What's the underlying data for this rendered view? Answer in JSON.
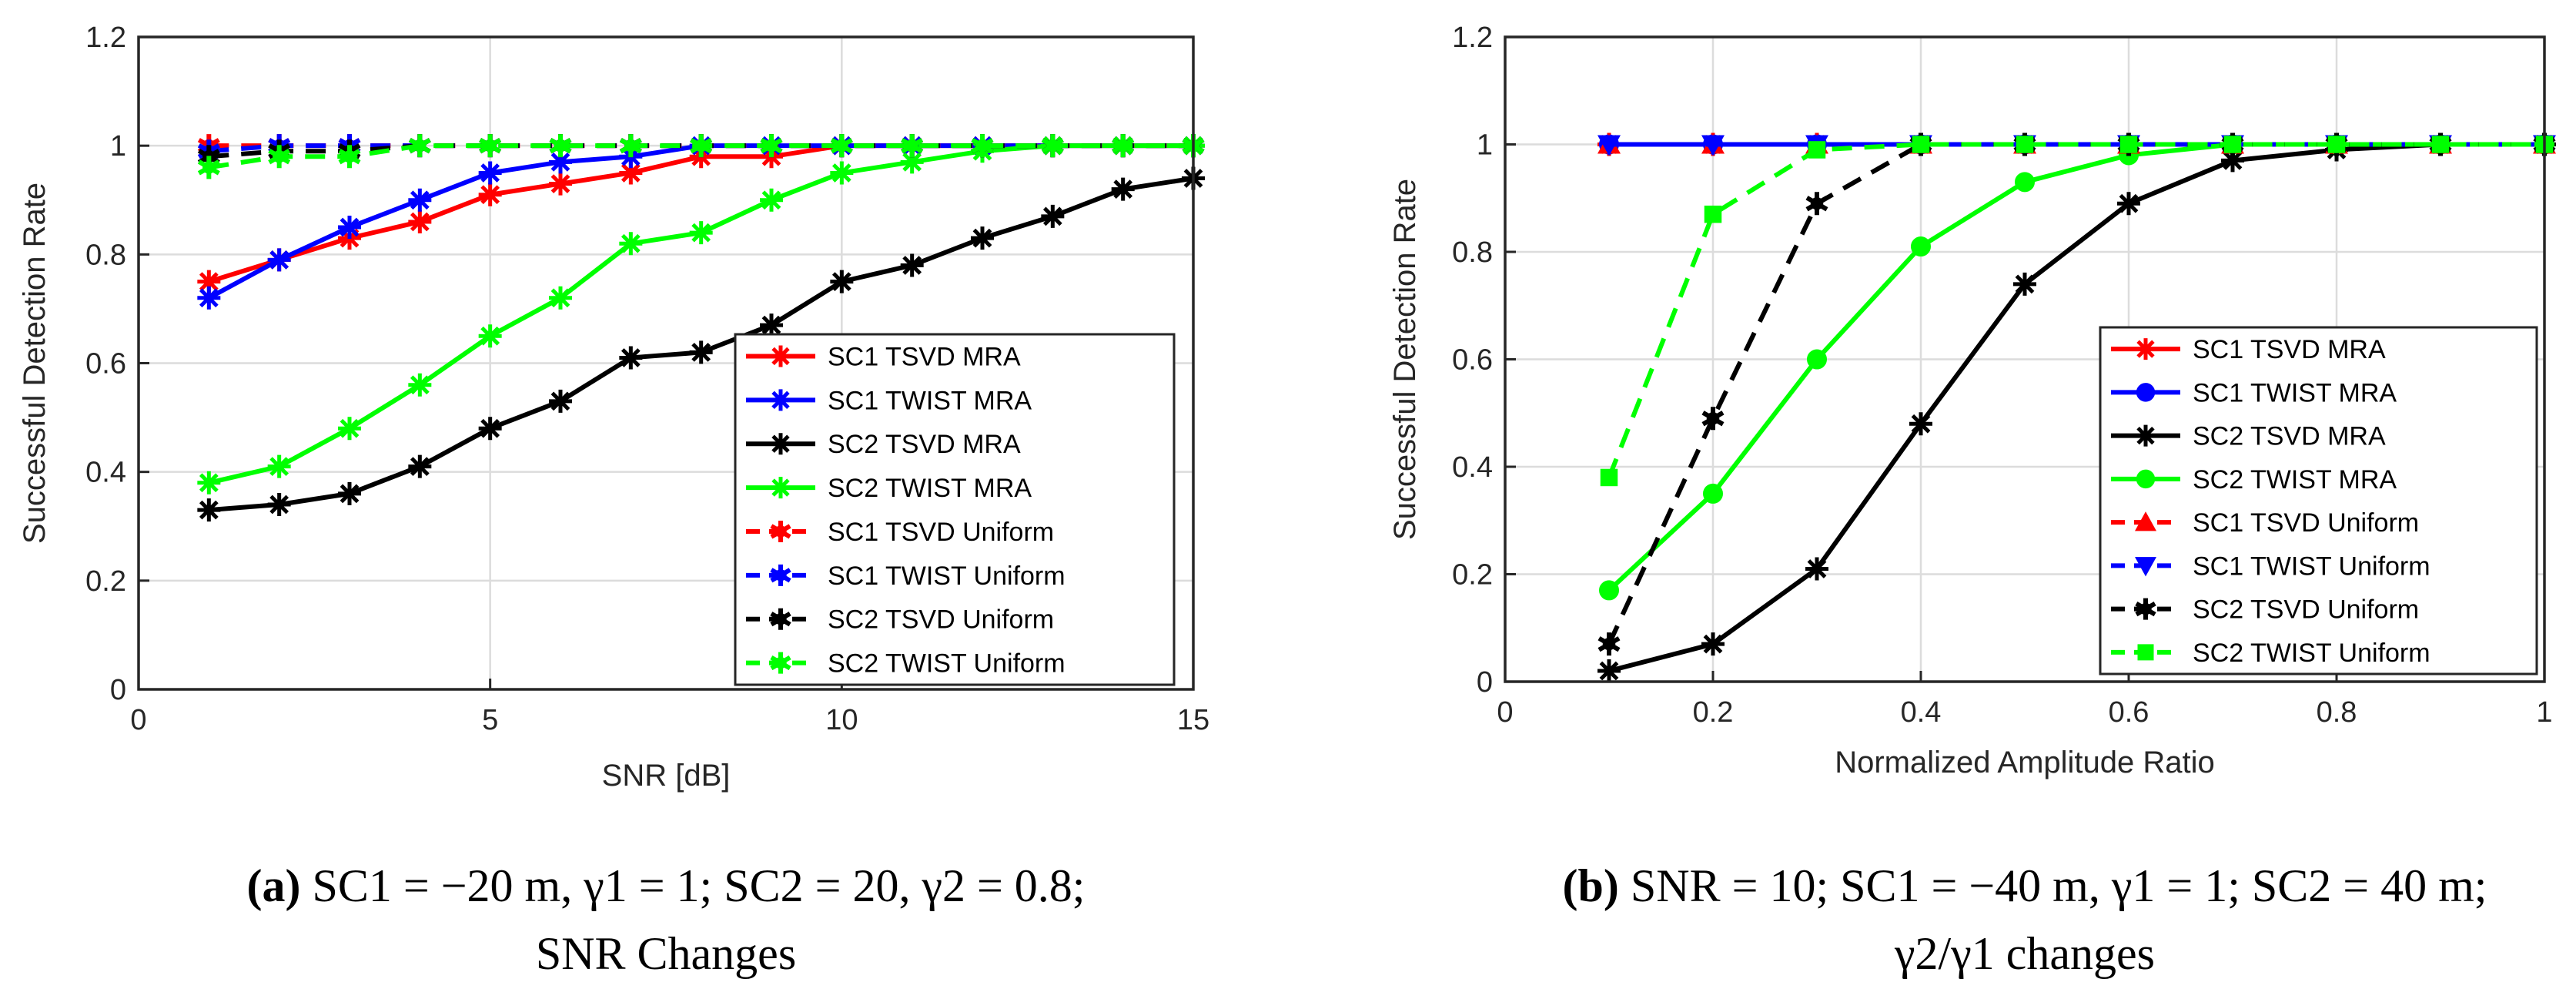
{
  "chart_data": [
    {
      "type": "line",
      "panel": "a",
      "xlabel": "SNR [dB]",
      "ylabel": "Successful Detection Rate",
      "xlim": [
        0,
        15
      ],
      "ylim": [
        0,
        1.2
      ],
      "xticks": [
        0,
        5,
        10,
        15
      ],
      "yticks": [
        0,
        0.2,
        0.4,
        0.6,
        0.8,
        1,
        1.2
      ],
      "grid": true,
      "legend_position": "bottom-right",
      "caption_label": "(a)",
      "caption_line1": " SC1 = −20 m, γ1 = 1; SC2 = 20, γ2 = 0.8;",
      "caption_line2": "SNR Changes",
      "x": [
        1,
        2,
        3,
        4,
        5,
        6,
        7,
        8,
        9,
        10,
        11,
        12,
        13,
        14,
        15
      ],
      "series": [
        {
          "name": "SC1 TSVD MRA",
          "color": "#ff0000",
          "dash": "solid",
          "marker": "star",
          "values": [
            0.75,
            0.79,
            0.83,
            0.86,
            0.91,
            0.93,
            0.95,
            0.98,
            0.98,
            1,
            1,
            1,
            1,
            1,
            1
          ]
        },
        {
          "name": "SC1 TWIST MRA",
          "color": "#0000ff",
          "dash": "solid",
          "marker": "star",
          "values": [
            0.72,
            0.79,
            0.85,
            0.9,
            0.95,
            0.97,
            0.98,
            1,
            1,
            1,
            1,
            1,
            1,
            1,
            1
          ]
        },
        {
          "name": "SC2 TSVD MRA",
          "color": "#000000",
          "dash": "solid",
          "marker": "star",
          "values": [
            0.33,
            0.34,
            0.36,
            0.41,
            0.48,
            0.53,
            0.61,
            0.62,
            0.67,
            0.75,
            0.78,
            0.83,
            0.87,
            0.92,
            0.94
          ]
        },
        {
          "name": "SC2 TWIST MRA",
          "color": "#00ff00",
          "dash": "solid",
          "marker": "star",
          "values": [
            0.38,
            0.41,
            0.48,
            0.56,
            0.65,
            0.72,
            0.82,
            0.84,
            0.9,
            0.95,
            0.97,
            0.99,
            1,
            1,
            1
          ]
        },
        {
          "name": "SC1 TSVD Uniform",
          "color": "#ff0000",
          "dash": "dashed",
          "marker": "hexstar",
          "values": [
            1,
            1,
            1,
            1,
            1,
            1,
            1,
            1,
            1,
            1,
            1,
            1,
            1,
            1,
            1
          ]
        },
        {
          "name": "SC1 TWIST Uniform",
          "color": "#0000ff",
          "dash": "dashed",
          "marker": "hexstar",
          "values": [
            0.99,
            1,
            1,
            1,
            1,
            1,
            1,
            1,
            1,
            1,
            1,
            1,
            1,
            1,
            1
          ]
        },
        {
          "name": "SC2 TSVD Uniform",
          "color": "#000000",
          "dash": "dashed",
          "marker": "hexstar",
          "values": [
            0.98,
            0.99,
            0.99,
            1,
            1,
            1,
            1,
            1,
            1,
            1,
            1,
            1,
            1,
            1,
            1
          ]
        },
        {
          "name": "SC2 TWIST Uniform",
          "color": "#00ff00",
          "dash": "dashed",
          "marker": "hexstar",
          "values": [
            0.96,
            0.98,
            0.98,
            1,
            1,
            1,
            1,
            1,
            1,
            1,
            1,
            1,
            1,
            1,
            1
          ]
        }
      ]
    },
    {
      "type": "line",
      "panel": "b",
      "xlabel": "Normalized Amplitude Ratio",
      "ylabel": "Successful Detection Rate",
      "xlim": [
        0,
        1
      ],
      "ylim": [
        0,
        1.2
      ],
      "xticks": [
        0,
        0.2,
        0.4,
        0.6,
        0.8,
        1
      ],
      "yticks": [
        0,
        0.2,
        0.4,
        0.6,
        0.8,
        1,
        1.2
      ],
      "grid": true,
      "legend_position": "bottom-right",
      "caption_label": "(b)",
      "caption_line1": " SNR = 10; SC1 = −40 m, γ1 = 1; SC2 = 40 m;",
      "caption_line2": "γ2/γ1 changes",
      "x": [
        0.1,
        0.2,
        0.3,
        0.4,
        0.5,
        0.6,
        0.7,
        0.8,
        0.9,
        1
      ],
      "series": [
        {
          "name": "SC1 TSVD MRA",
          "color": "#ff0000",
          "dash": "solid",
          "marker": "star",
          "values": [
            1,
            1,
            1,
            1,
            1,
            1,
            1,
            1,
            1,
            1
          ]
        },
        {
          "name": "SC1 TWIST MRA",
          "color": "#0000ff",
          "dash": "solid",
          "marker": "circle",
          "values": [
            1,
            1,
            1,
            1,
            1,
            1,
            1,
            1,
            1,
            1
          ]
        },
        {
          "name": "SC2 TSVD MRA",
          "color": "#000000",
          "dash": "solid",
          "marker": "star",
          "values": [
            0.02,
            0.07,
            0.21,
            0.48,
            0.74,
            0.89,
            0.97,
            0.99,
            1,
            1
          ]
        },
        {
          "name": "SC2 TWIST MRA",
          "color": "#00ff00",
          "dash": "solid",
          "marker": "circle",
          "values": [
            0.17,
            0.35,
            0.6,
            0.81,
            0.93,
            0.98,
            1,
            1,
            1,
            1
          ]
        },
        {
          "name": "SC1 TSVD Uniform",
          "color": "#ff0000",
          "dash": "dashed",
          "marker": "triangle-up",
          "values": [
            1,
            1,
            1,
            1,
            1,
            1,
            1,
            1,
            1,
            1
          ]
        },
        {
          "name": "SC1 TWIST Uniform",
          "color": "#0000ff",
          "dash": "dashed",
          "marker": "triangle-down",
          "values": [
            1,
            1,
            1,
            1,
            1,
            1,
            1,
            1,
            1,
            1
          ]
        },
        {
          "name": "SC2 TSVD Uniform",
          "color": "#000000",
          "dash": "dashed",
          "marker": "hexstar",
          "values": [
            0.07,
            0.49,
            0.89,
            1,
            1,
            1,
            1,
            1,
            1,
            1
          ]
        },
        {
          "name": "SC2 TWIST Uniform",
          "color": "#00ff00",
          "dash": "dashed",
          "marker": "square",
          "values": [
            0.38,
            0.87,
            0.99,
            1,
            1,
            1,
            1,
            1,
            1,
            1
          ]
        }
      ]
    }
  ]
}
